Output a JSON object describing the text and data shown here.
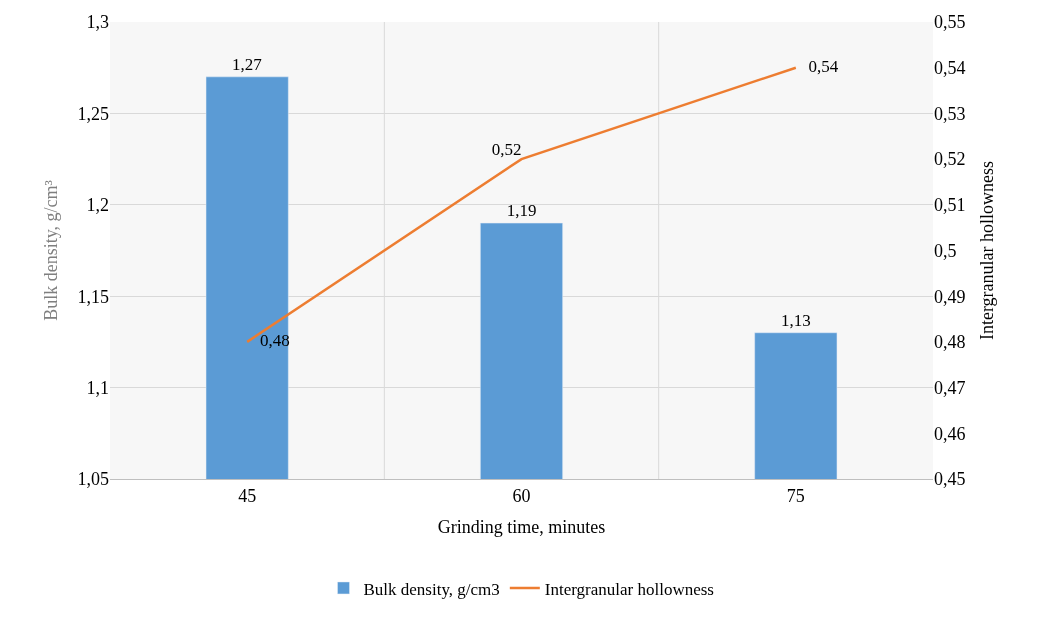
{
  "chart_data": {
    "type": "bar",
    "xlabel": "Grinding time, minutes",
    "ylabel": "Bulk density, g/cm³",
    "y2label": "Intergranular hollowness",
    "categories": [
      "45",
      "60",
      "75"
    ],
    "series": [
      {
        "name": "Bulk density, g/cm3",
        "color": "#5b9bd5",
        "values": [
          1.27,
          1.19,
          1.13
        ],
        "value_labels": [
          "1,27",
          "1,19",
          "1,13"
        ]
      },
      {
        "name": "Intergranular hollowness",
        "type": "line",
        "axis": "y2",
        "color": "#ed7d31",
        "marker": "none",
        "values": [
          0.48,
          0.52,
          0.54
        ],
        "value_labels": [
          "0,48",
          "0,52",
          "0,54"
        ]
      }
    ],
    "ylim": [
      1.05,
      1.3
    ],
    "yticks": [
      {
        "value": 1.05,
        "label": "1,05"
      },
      {
        "value": 1.1,
        "label": "1,1"
      },
      {
        "value": 1.15,
        "label": "1,15"
      },
      {
        "value": 1.2,
        "label": "1,2"
      },
      {
        "value": 1.25,
        "label": "1,25"
      },
      {
        "value": 1.3,
        "label": "1,3"
      }
    ],
    "y2lim": [
      0.45,
      0.55
    ],
    "y2ticks": [
      {
        "value": 0.45,
        "label": "0,45"
      },
      {
        "value": 0.46,
        "label": "0,46"
      },
      {
        "value": 0.47,
        "label": "0,47"
      },
      {
        "value": 0.48,
        "label": "0,48"
      },
      {
        "value": 0.49,
        "label": "0,49"
      },
      {
        "value": 0.5,
        "label": "0,5"
      },
      {
        "value": 0.51,
        "label": "0,51"
      },
      {
        "value": 0.52,
        "label": "0,52"
      },
      {
        "value": 0.53,
        "label": "0,53"
      },
      {
        "value": 0.54,
        "label": "0,54"
      },
      {
        "value": 0.55,
        "label": "0,55"
      }
    ],
    "grid": true,
    "legend": "bottom"
  }
}
